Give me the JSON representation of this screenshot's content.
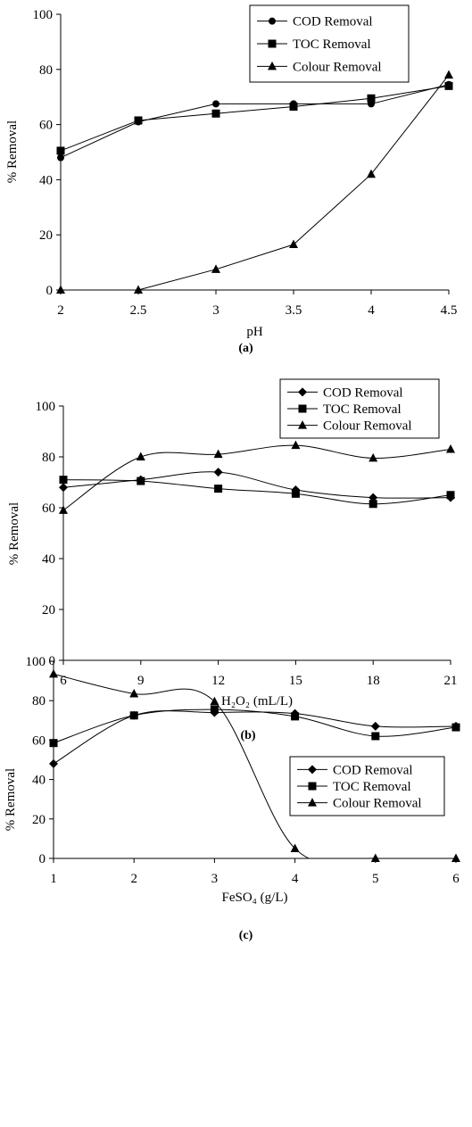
{
  "chart_data": [
    {
      "type": "line",
      "panel_label": "(a)",
      "xlabel": "pH",
      "ylabel": "% Removal",
      "xlim": [
        2,
        4.5
      ],
      "ylim": [
        0,
        100
      ],
      "x_ticks": [
        "2",
        "2.5",
        "3",
        "3.5",
        "4",
        "4.5"
      ],
      "y_ticks": [
        "0",
        "20",
        "40",
        "60",
        "80",
        "100"
      ],
      "legend_placement": "top-right",
      "x": [
        2,
        2.5,
        3,
        3.5,
        4,
        4.5
      ],
      "series": [
        {
          "name": "COD Removal",
          "marker": "circle",
          "values": [
            48,
            61,
            67.5,
            67.5,
            67.5,
            74.5
          ]
        },
        {
          "name": "TOC Removal",
          "marker": "square",
          "values": [
            50.5,
            61.5,
            64,
            66.5,
            69.5,
            74
          ]
        },
        {
          "name": "Colour Removal",
          "marker": "triangle",
          "values": [
            0,
            0,
            7.5,
            16.5,
            42,
            78
          ]
        }
      ]
    },
    {
      "type": "line",
      "panel_label": "(b)",
      "xlabel": "H₂O₂ (mL/L)",
      "ylabel": "% Removal",
      "xlim": [
        6,
        21
      ],
      "ylim": [
        0,
        100
      ],
      "x_ticks": [
        "6",
        "9",
        "12",
        "15",
        "18",
        "21"
      ],
      "y_ticks": [
        "0",
        "20",
        "40",
        "60",
        "80",
        "100"
      ],
      "legend_placement": "top-right",
      "x": [
        6,
        9,
        12,
        15,
        18,
        21
      ],
      "series": [
        {
          "name": "COD Removal",
          "marker": "diamond",
          "values": [
            68,
            71,
            74,
            67,
            64,
            64
          ]
        },
        {
          "name": "TOC Removal",
          "marker": "square",
          "values": [
            71,
            70.5,
            67.5,
            65.5,
            61.5,
            65
          ]
        },
        {
          "name": "Colour Removal",
          "marker": "triangle",
          "values": [
            59,
            80,
            81,
            84.5,
            79.5,
            83
          ]
        }
      ]
    },
    {
      "type": "line",
      "panel_label": "(c)",
      "xlabel": "FeSO₄ (g/L)",
      "ylabel": "% Removal",
      "xlim": [
        1,
        6
      ],
      "ylim": [
        0,
        100
      ],
      "x_ticks": [
        "1",
        "2",
        "3",
        "4",
        "5",
        "6"
      ],
      "y_ticks": [
        "0",
        "20",
        "40",
        "60",
        "80",
        "100"
      ],
      "legend_placement": "top-right",
      "x": [
        1,
        2,
        3,
        4,
        5,
        6
      ],
      "series": [
        {
          "name": "COD Removal",
          "marker": "diamond",
          "values": [
            48,
            72.5,
            74,
            73.5,
            67,
            67
          ]
        },
        {
          "name": "TOC Removal",
          "marker": "square",
          "values": [
            58.5,
            72.5,
            75.5,
            72,
            62,
            66.5
          ]
        },
        {
          "name": "Colour Removal",
          "marker": "triangle",
          "values": [
            93.5,
            83.5,
            79.5,
            5,
            0,
            0
          ]
        }
      ]
    }
  ]
}
